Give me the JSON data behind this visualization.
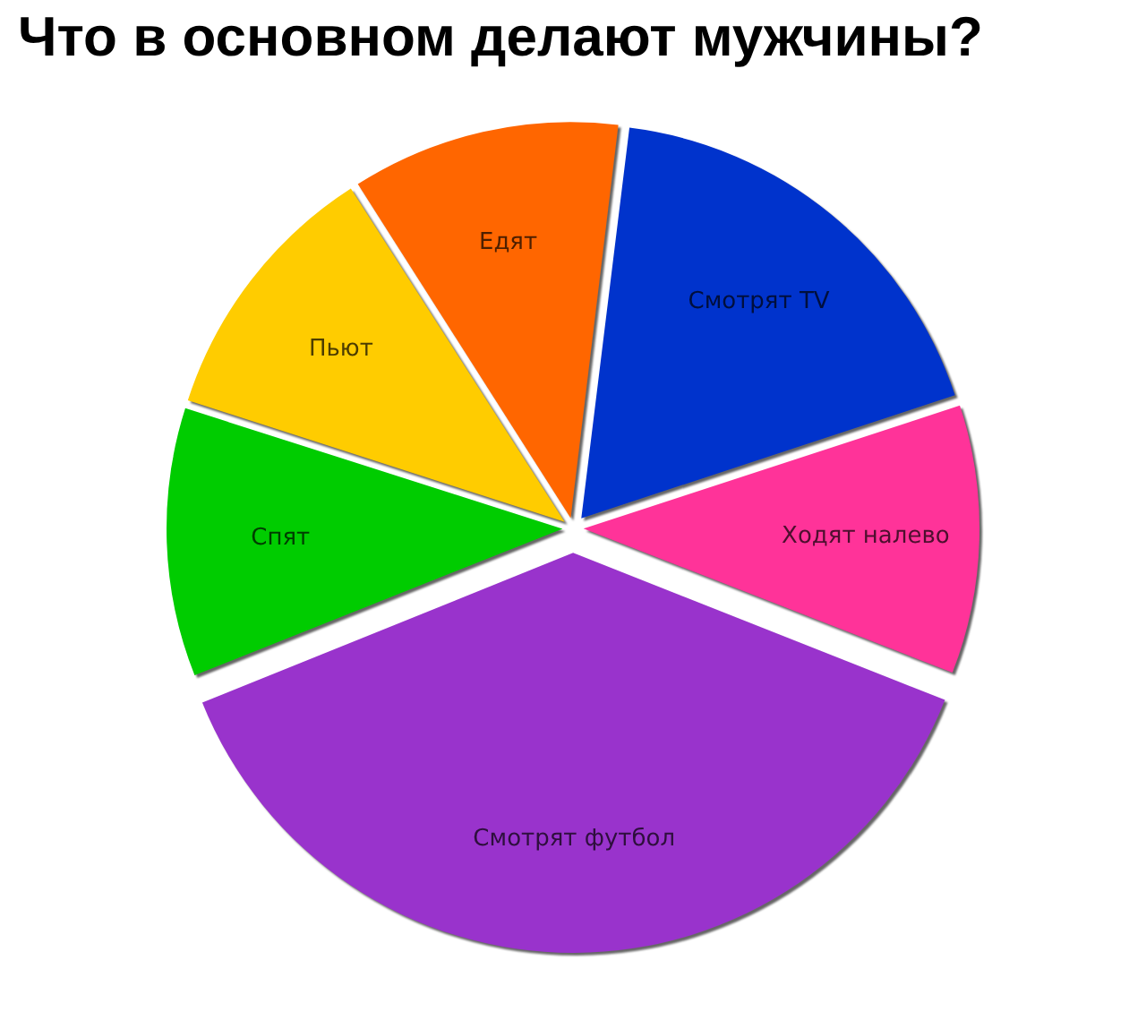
{
  "chart_data": {
    "type": "pie",
    "title": "Что в основном делают мужчины?",
    "categories": [
      "Смотрят TV",
      "Ходят налево",
      "Смотрят футбол",
      "Спят",
      "Пьют",
      "Едят"
    ],
    "values": [
      18,
      11,
      38,
      11,
      11,
      11
    ],
    "colors": [
      "#0033cc",
      "#ff3399",
      "#9933cc",
      "#00cc00",
      "#ffcc00",
      "#ff6600"
    ],
    "legend": false
  }
}
